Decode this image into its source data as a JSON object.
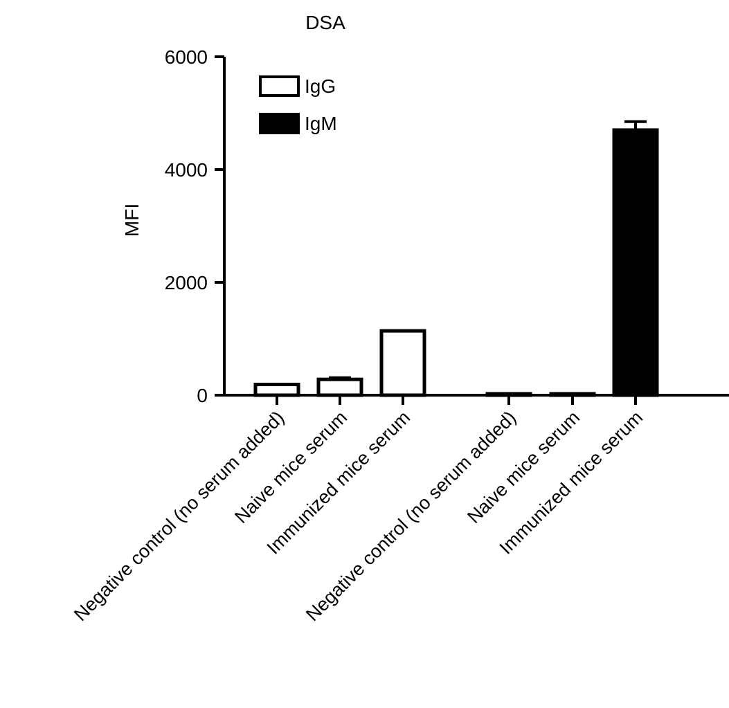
{
  "chart_data": {
    "type": "bar",
    "title": "DSA",
    "ylabel": "MFI",
    "xlabel": "",
    "ylim": [
      0,
      6000
    ],
    "yticks": [
      0,
      2000,
      4000,
      6000
    ],
    "legend_position": "top-left",
    "grid": false,
    "series": [
      {
        "name": "IgG",
        "fill": "#ffffff",
        "categories": [
          "Negative control (no serum added)",
          "Naive mice serum",
          "Immunized mice serum"
        ],
        "values": [
          190,
          280,
          1140
        ],
        "errors": [
          0,
          30,
          0
        ]
      },
      {
        "name": "IgM",
        "fill": "#000000",
        "categories": [
          "Negative control (no serum added)",
          "Naive mice serum",
          "Immunized mice serum"
        ],
        "values": [
          20,
          20,
          4700
        ],
        "errors": [
          0,
          0,
          150
        ]
      }
    ]
  }
}
